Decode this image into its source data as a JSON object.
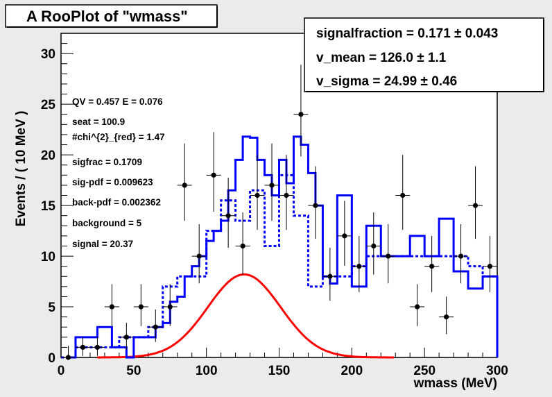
{
  "title": "A RooPlot of \"wmass\"",
  "fit_box": {
    "lines": [
      "signalfraction =  0.171 ± 0.043",
      "v_mean =  126.0 ± 1.1",
      "v_sigma =  24.99 ± 0.46"
    ]
  },
  "annotations": [
    "QV = 0.457 E = 0.076",
    "seat = 100.9",
    "#chi^{2}_{red} = 1.47",
    "sigfrac = 0.1709",
    "sig-pdf = 0.009623",
    "back-pdf = 0.002362",
    "background = 5",
    "signal = 20.37"
  ],
  "chart_data": {
    "type": "line",
    "xlabel": "wmass (MeV)",
    "ylabel": "Events / ( 10 MeV )",
    "xlim": [
      0,
      300
    ],
    "ylim": [
      0,
      32
    ],
    "xticks": [
      0,
      50,
      100,
      150,
      200,
      250,
      300
    ],
    "yticks": [
      0,
      5,
      10,
      15,
      20,
      25,
      30
    ],
    "data_points": {
      "name": "data",
      "x": [
        5,
        15,
        25,
        35,
        45,
        55,
        65,
        75,
        85,
        95,
        105,
        115,
        125,
        135,
        145,
        155,
        165,
        175,
        185,
        195,
        205,
        215,
        225,
        235,
        245,
        255,
        265,
        275,
        285,
        295
      ],
      "y": [
        0,
        1,
        1,
        5,
        2,
        5,
        3,
        5,
        17,
        10,
        18,
        14,
        11,
        16,
        17,
        16,
        24,
        15,
        8,
        12,
        9,
        11,
        10,
        16,
        5,
        9,
        4,
        10,
        15,
        9
      ]
    },
    "total_fit": {
      "name": "total",
      "color": "#0000ff",
      "x": [
        5,
        10,
        15,
        20,
        25,
        30,
        35,
        40,
        45,
        50,
        55,
        60,
        65,
        70,
        75,
        80,
        85,
        90,
        95,
        100,
        105,
        110,
        115,
        120,
        125,
        130,
        135,
        140,
        145,
        150,
        155,
        160,
        165,
        170,
        175,
        180,
        185,
        190,
        195,
        200,
        205,
        210,
        215,
        220,
        225,
        230,
        235,
        240,
        245,
        250,
        255,
        260,
        265,
        270,
        275,
        280,
        285,
        290,
        295,
        300
      ],
      "y": [
        0,
        2,
        2,
        2,
        3,
        3,
        1,
        1,
        0,
        2,
        2,
        2,
        3,
        3.4,
        5.5,
        6,
        8,
        9,
        10,
        11.5,
        12.5,
        13.5,
        16.5,
        19.5,
        21.8,
        21.7,
        19.5,
        18,
        16,
        19.5,
        17.2,
        21.8,
        21,
        18.2,
        15,
        8,
        7.3,
        16,
        16,
        7,
        7,
        13,
        13,
        10,
        10,
        10,
        10,
        12,
        12,
        10,
        10,
        13.7,
        13.7,
        8.5,
        8.5,
        6.8,
        6.8,
        8,
        8,
        0
      ]
    },
    "background_fit": {
      "name": "background",
      "color": "#0000ff",
      "style": "dashed",
      "x": [
        5,
        15,
        25,
        35,
        45,
        55,
        65,
        75,
        85,
        95,
        105,
        115,
        125,
        135,
        145,
        155,
        165,
        175,
        185,
        195,
        205,
        215,
        225,
        235,
        245,
        255,
        265,
        275,
        285,
        295
      ],
      "y": [
        0,
        1,
        1,
        1,
        2,
        2,
        3,
        7,
        8,
        8,
        12.5,
        15.5,
        13.5,
        16.5,
        11,
        18,
        14,
        7,
        8,
        8,
        9,
        10,
        10,
        10,
        10,
        10,
        10,
        10,
        9,
        8
      ]
    },
    "signal_fit": {
      "name": "signal",
      "color": "#ff0000",
      "mean": 126,
      "sigma": 24.99,
      "peak": 8.2,
      "x_range": [
        25,
        230
      ]
    }
  }
}
